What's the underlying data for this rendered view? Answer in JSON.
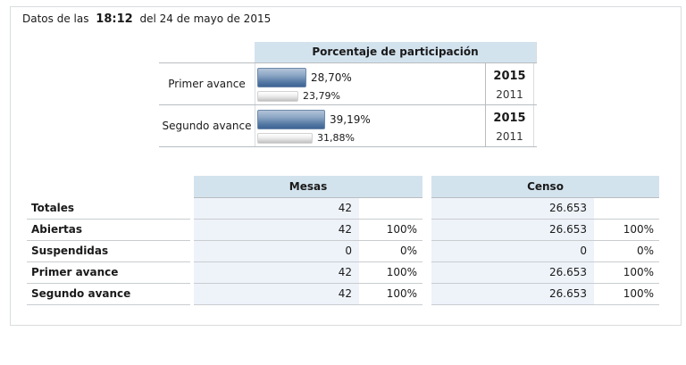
{
  "header": {
    "prefix": "Datos de las",
    "time": "18:12",
    "suffix": "del 24 de mayo de 2015"
  },
  "participation": {
    "title": "Porcentaje de participación",
    "rows": [
      {
        "label": "Primer avance",
        "bars": [
          {
            "year": "2015",
            "value": 28.7,
            "display": "28,70%"
          },
          {
            "year": "2011",
            "value": 23.79,
            "display": "23,79%"
          }
        ]
      },
      {
        "label": "Segundo avance",
        "bars": [
          {
            "year": "2015",
            "value": 39.19,
            "display": "39,19%"
          },
          {
            "year": "2011",
            "value": 31.88,
            "display": "31,88%"
          }
        ]
      }
    ]
  },
  "summary": {
    "column_groups": [
      "Mesas",
      "Censo"
    ],
    "rows": [
      {
        "label": "Totales",
        "mesas_value": "42",
        "mesas_pct": "",
        "censo_value": "26.653",
        "censo_pct": ""
      },
      {
        "label": "Abiertas",
        "mesas_value": "42",
        "mesas_pct": "100%",
        "censo_value": "26.653",
        "censo_pct": "100%"
      },
      {
        "label": "Suspendidas",
        "mesas_value": "0",
        "mesas_pct": "0%",
        "censo_value": "0",
        "censo_pct": "0%"
      },
      {
        "label": "Primer avance",
        "mesas_value": "42",
        "mesas_pct": "100%",
        "censo_value": "26.653",
        "censo_pct": "100%"
      },
      {
        "label": "Segundo avance",
        "mesas_value": "42",
        "mesas_pct": "100%",
        "censo_value": "26.653",
        "censo_pct": "100%"
      }
    ]
  },
  "chart_data": {
    "type": "bar",
    "orientation": "horizontal",
    "title": "Porcentaje de participación",
    "categories": [
      "Primer avance",
      "Segundo avance"
    ],
    "series": [
      {
        "name": "2015",
        "values": [
          28.7,
          39.19
        ]
      },
      {
        "name": "2011",
        "values": [
          23.79,
          31.88
        ]
      }
    ],
    "xlim": [
      0,
      100
    ],
    "value_suffix": "%"
  },
  "colors": {
    "header_bg": "#d3e3ee",
    "value_cell_bg": "#eef3fa",
    "bar_2015_top": "#b3c3d8",
    "bar_2015_bottom": "#3d6394",
    "bar_2011_top": "#ffffff",
    "bar_2011_bottom": "#bfbfbf",
    "border": "#c9cdd0",
    "border_strong": "#b9bdc0",
    "border_light": "#d8dcde",
    "panel_border": "#d9dddf"
  }
}
